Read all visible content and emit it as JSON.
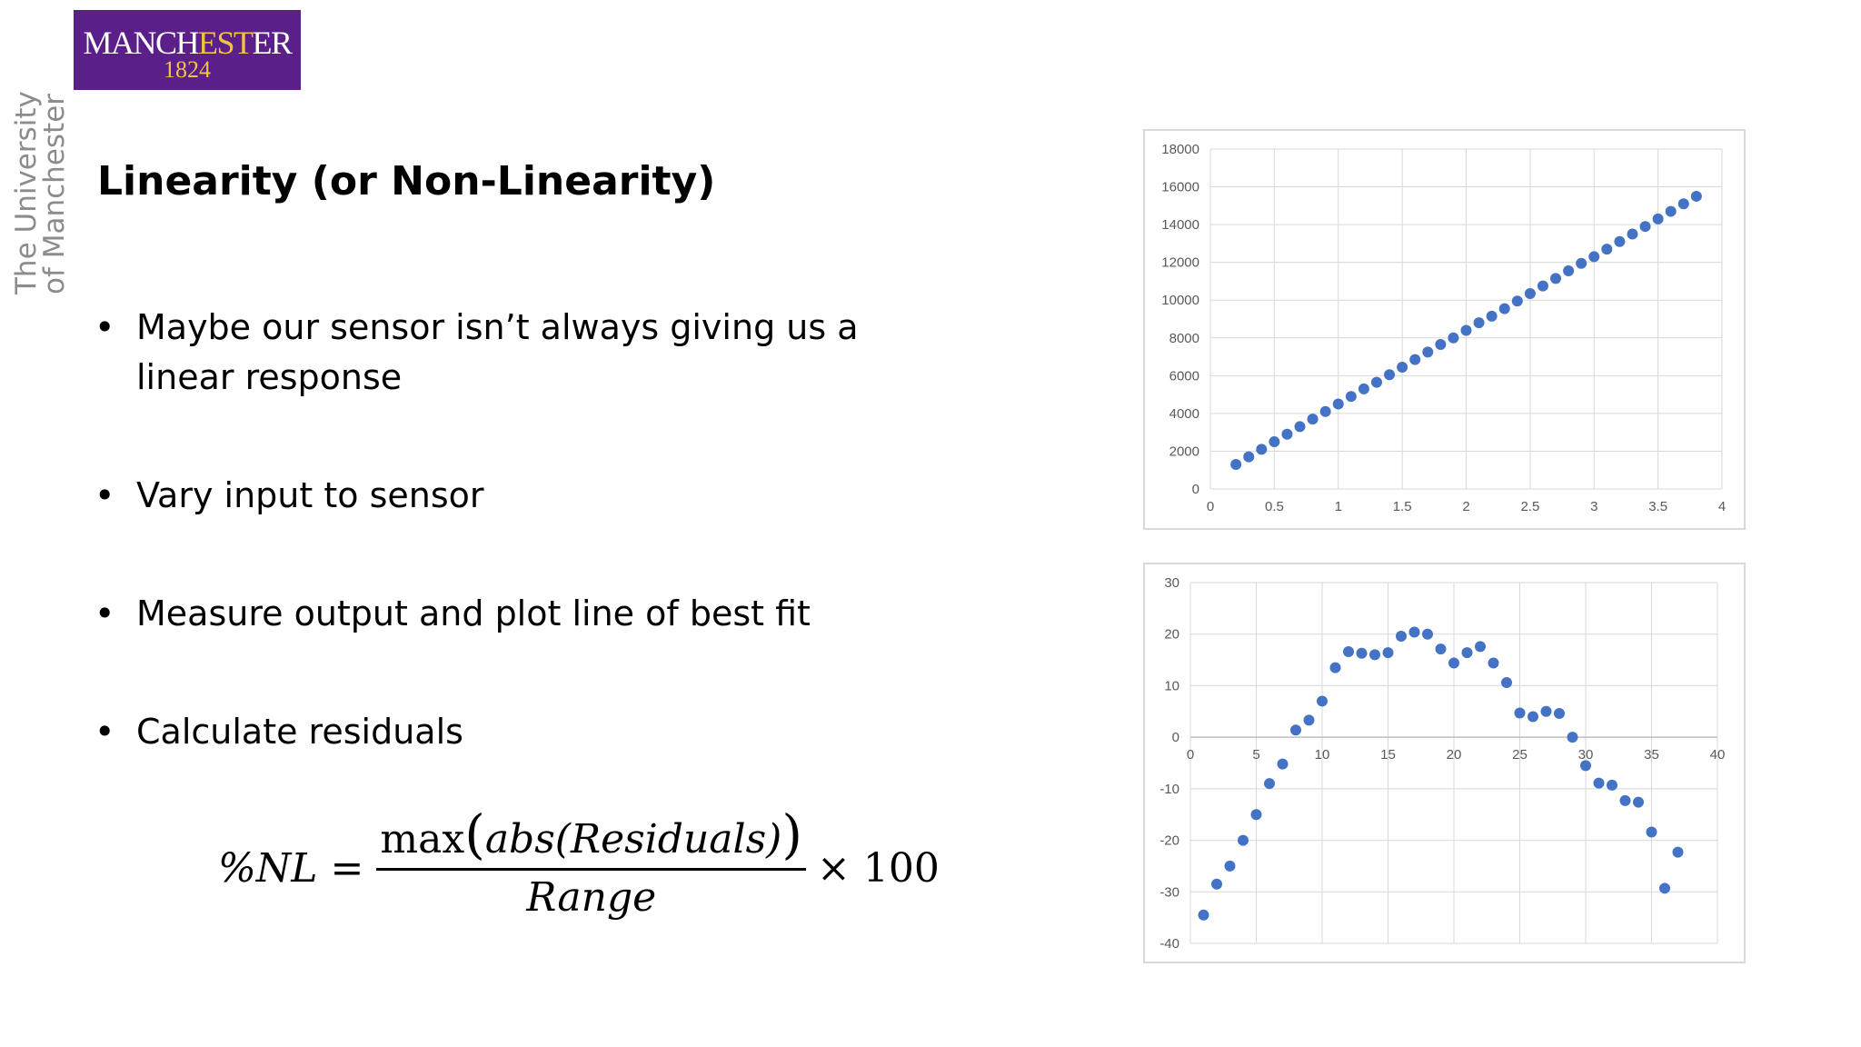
{
  "logo": {
    "name_part1": "MANCH",
    "name_part2": "EST",
    "name_part3": "ER",
    "year": "1824"
  },
  "vertical_text": {
    "line1": "The University",
    "line2": "of Manchester"
  },
  "title": "Linearity (or Non-Linearity)",
  "bullets": [
    "Maybe our sensor isn’t always giving us a linear response",
    "Vary input to sensor",
    "Measure output and plot line of best fit",
    "Calculate residuals"
  ],
  "formula": {
    "lhs": "%NL",
    "equals": "=",
    "numerator_fn": "max",
    "numerator_open": "(",
    "numerator_inner": "abs(Residuals)",
    "numerator_close": ")",
    "denominator": "Range",
    "times": "× 100"
  },
  "colors": {
    "logo_purple": "#5b1f8a",
    "logo_gold": "#f2c342",
    "marker": "#4472c4",
    "grid": "#d9d9d9",
    "axis_text": "#595959"
  },
  "chart_data": [
    {
      "type": "scatter",
      "title": "",
      "xlabel": "",
      "ylabel": "",
      "xlim": [
        0,
        4
      ],
      "ylim": [
        0,
        18000
      ],
      "xticks": [
        0,
        0.5,
        1,
        1.5,
        2,
        2.5,
        3,
        3.5,
        4
      ],
      "yticks": [
        0,
        2000,
        4000,
        6000,
        8000,
        10000,
        12000,
        14000,
        16000,
        18000
      ],
      "grid": true,
      "x": [
        0.2,
        0.3,
        0.4,
        0.5,
        0.6,
        0.7,
        0.8,
        0.9,
        1.0,
        1.1,
        1.2,
        1.3,
        1.4,
        1.5,
        1.6,
        1.7,
        1.8,
        1.9,
        2.0,
        2.1,
        2.2,
        2.3,
        2.4,
        2.5,
        2.6,
        2.7,
        2.8,
        2.9,
        3.0,
        3.1,
        3.2,
        3.3,
        3.4,
        3.5,
        3.6,
        3.7,
        3.8
      ],
      "y": [
        1300,
        1700,
        2100,
        2500,
        2900,
        3300,
        3700,
        4100,
        4500,
        4900,
        5300,
        5650,
        6050,
        6450,
        6850,
        7250,
        7650,
        8000,
        8400,
        8800,
        9150,
        9550,
        9950,
        10350,
        10750,
        11150,
        11550,
        11950,
        12300,
        12700,
        13100,
        13500,
        13900,
        14300,
        14700,
        15100,
        15500
      ]
    },
    {
      "type": "scatter",
      "title": "",
      "xlabel": "",
      "ylabel": "",
      "xlim": [
        0,
        40
      ],
      "ylim": [
        -40,
        30
      ],
      "xticks": [
        0,
        5,
        10,
        15,
        20,
        25,
        30,
        35,
        40
      ],
      "yticks": [
        -40,
        -30,
        -20,
        -10,
        0,
        10,
        20,
        30
      ],
      "grid": true,
      "x": [
        1,
        2,
        3,
        4,
        5,
        6,
        7,
        8,
        9,
        10,
        11,
        12,
        13,
        14,
        15,
        16,
        17,
        18,
        19,
        20,
        21,
        22,
        23,
        24,
        25,
        26,
        27,
        28,
        29,
        30,
        31,
        32,
        33,
        34,
        35,
        36,
        37
      ],
      "y": [
        -34.5,
        -28.5,
        -25,
        -20,
        -15,
        -9,
        -5.2,
        1.4,
        3.3,
        7,
        13.5,
        16.6,
        16.3,
        16,
        16.4,
        19.6,
        20.4,
        20,
        17.1,
        14.4,
        16.4,
        17.6,
        14.4,
        10.6,
        4.7,
        4,
        5,
        4.6,
        0,
        -5.5,
        -8.9,
        -9.3,
        -12.3,
        -12.6,
        -18.4,
        -29.3,
        -22.3
      ]
    }
  ]
}
